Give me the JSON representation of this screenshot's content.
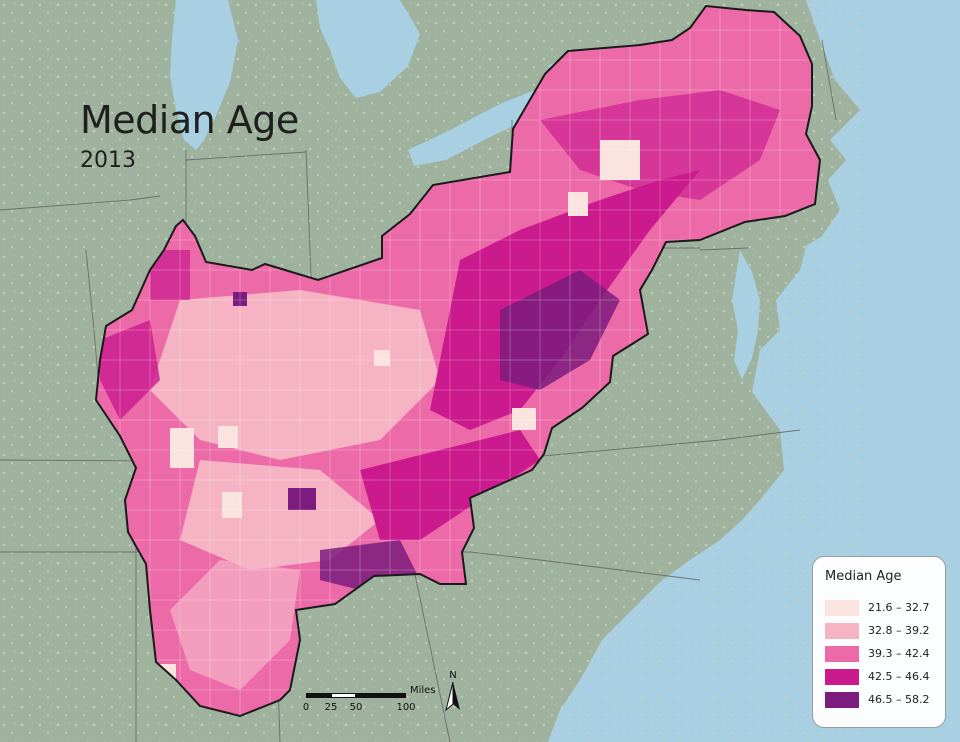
{
  "map": {
    "title": "Median Age",
    "subtitle": "2013",
    "water_color": "#a9cfe3",
    "land_color": "#9fb29e"
  },
  "legend": {
    "title": "Median Age",
    "classes": [
      {
        "label": "21.6 – 32.7",
        "color": "#fbe3df"
      },
      {
        "label": "32.8 – 39.2",
        "color": "#f5b3c3"
      },
      {
        "label": "39.3 – 42.4",
        "color": "#ec6aa8"
      },
      {
        "label": "42.5 – 46.4",
        "color": "#cb1a8e"
      },
      {
        "label": "46.5 – 58.2",
        "color": "#7b1c7e"
      }
    ]
  },
  "scale_bar": {
    "unit": "Miles",
    "ticks": [
      "0",
      "25",
      "50",
      "100"
    ]
  },
  "north_arrow": {
    "label": "N"
  }
}
